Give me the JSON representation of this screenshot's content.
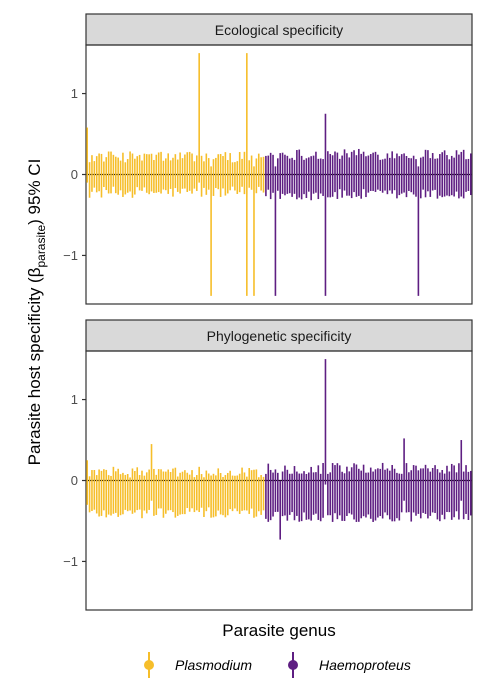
{
  "figure": {
    "ylabel_main": "Parasite host specificity (β",
    "ylabel_sub": "parasite",
    "ylabel_end": ") 95% CI",
    "xlabel": "Parasite genus"
  },
  "colors": {
    "Plasmodium": "#F6BE2A",
    "Haemoproteus": "#5E1E82",
    "strip_fill": "#D9D9D9",
    "zero_line": "#000000"
  },
  "legend": [
    {
      "label": "Plasmodium",
      "color": "#F6BE2A"
    },
    {
      "label": "Haemoproteus",
      "color": "#5E1E82"
    }
  ],
  "chart_data": [
    {
      "type": "errorbar",
      "title": "Ecological specificity",
      "xlabel": "Parasite genus",
      "ylabel": "Parasite host specificity (βparasite) 95% CI",
      "ylim": [
        -1.6,
        1.6
      ],
      "yticks": [
        -1,
        0,
        1
      ],
      "ytick_labels": [
        "−1",
        "0",
        "1"
      ],
      "grid": false,
      "hline_y": 0,
      "n_per_genus": {
        "Plasmodium": 75,
        "Haemoproteus": 87
      },
      "series": [
        {
          "name": "Plasmodium",
          "typical_interval": [
            -0.22,
            0.22
          ],
          "point_estimate_typical": 0.0,
          "wide_intervals": [
            {
              "index": 0,
              "low": -0.1,
              "high": 0.58
            },
            {
              "index": 47,
              "low": -0.1,
              "high": 1.5
            },
            {
              "index": 52,
              "low": -1.5,
              "high": 0.1
            },
            {
              "index": 67,
              "low": -1.5,
              "high": 1.5
            },
            {
              "index": 70,
              "low": -1.5,
              "high": 0.1
            }
          ]
        },
        {
          "name": "Haemoproteus",
          "typical_interval": [
            -0.25,
            0.25
          ],
          "point_estimate_typical": 0.0,
          "wide_intervals": [
            {
              "index": 4,
              "low": -1.5,
              "high": 0.1
            },
            {
              "index": 25,
              "low": -1.5,
              "high": 0.75
            },
            {
              "index": 64,
              "low": -1.5,
              "high": 0.1
            }
          ]
        }
      ]
    },
    {
      "type": "errorbar",
      "title": "Phylogenetic specificity",
      "xlabel": "Parasite genus",
      "ylabel": "Parasite host specificity (βparasite) 95% CI",
      "ylim": [
        -1.6,
        1.6
      ],
      "yticks": [
        -1,
        0,
        1
      ],
      "ytick_labels": [
        "−1",
        "0",
        "1"
      ],
      "grid": false,
      "hline_y": 0,
      "n_per_genus": {
        "Plasmodium": 75,
        "Haemoproteus": 87
      },
      "series": [
        {
          "name": "Plasmodium",
          "typical_interval": [
            -0.4,
            0.1
          ],
          "point_estimate_typical": -0.15,
          "wide_intervals": [
            {
              "index": 0,
              "low": -0.3,
              "high": 0.25
            },
            {
              "index": 27,
              "low": -0.25,
              "high": 0.45
            }
          ]
        },
        {
          "name": "Haemoproteus",
          "typical_interval": [
            -0.45,
            0.15
          ],
          "point_estimate_typical": -0.15,
          "wide_intervals": [
            {
              "index": 6,
              "low": -0.73,
              "high": 0.0
            },
            {
              "index": 25,
              "low": -0.05,
              "high": 1.5
            },
            {
              "index": 58,
              "low": -0.25,
              "high": 0.52
            },
            {
              "index": 82,
              "low": -0.25,
              "high": 0.5
            }
          ]
        }
      ]
    }
  ]
}
